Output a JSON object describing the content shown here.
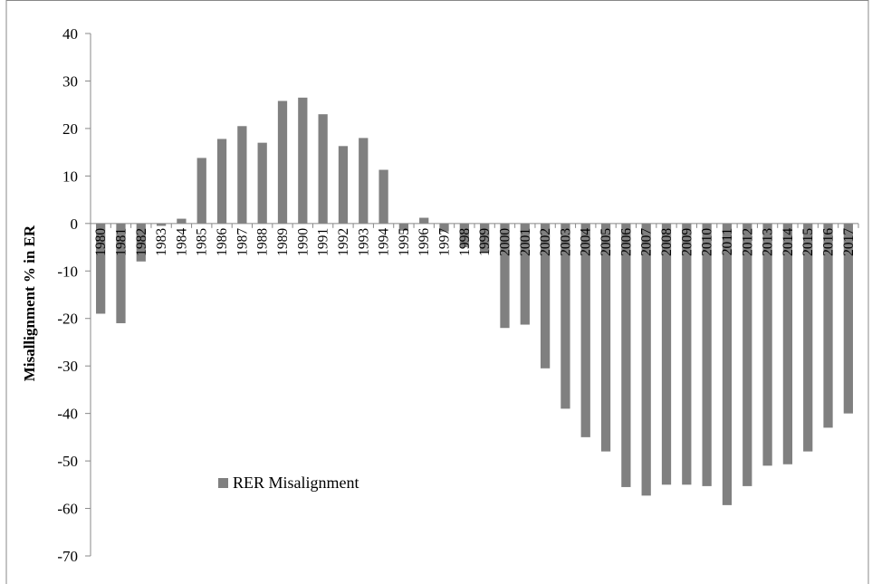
{
  "chart_data": {
    "type": "bar",
    "ylabel": "Misallignment % in ER",
    "ylim": [
      -70,
      40
    ],
    "yticks": [
      40,
      30,
      20,
      10,
      0,
      -10,
      -20,
      -30,
      -40,
      -50,
      -60,
      -70
    ],
    "grid": false,
    "legend_position": "lower-left",
    "categories": [
      "1980",
      "1981",
      "1982",
      "1983",
      "1984",
      "1985",
      "1986",
      "1987",
      "1988",
      "1989",
      "1990",
      "1991",
      "1992",
      "1993",
      "1994",
      "1995",
      "1996",
      "1997",
      "1998",
      "1999",
      "2000",
      "2001",
      "2002",
      "2003",
      "2004",
      "2005",
      "2006",
      "2007",
      "2008",
      "2009",
      "2010",
      "2011",
      "2012",
      "2013",
      "2014",
      "2015",
      "2016",
      "2017"
    ],
    "series": [
      {
        "name": "RER Misalignment",
        "color": "#808080",
        "values": [
          -19,
          -21,
          -8,
          -0.5,
          1,
          13.8,
          17.8,
          20.5,
          17,
          25.8,
          26.5,
          23,
          16.3,
          18,
          11.3,
          -1.5,
          1.2,
          -1.7,
          -5,
          -6,
          -22,
          -21.3,
          -30.5,
          -39,
          -45,
          -48,
          -55.5,
          -57.3,
          -55,
          -55,
          -55.3,
          -59.3,
          -55.3,
          -51,
          -50.7,
          -48,
          -43,
          -40
        ]
      }
    ]
  }
}
